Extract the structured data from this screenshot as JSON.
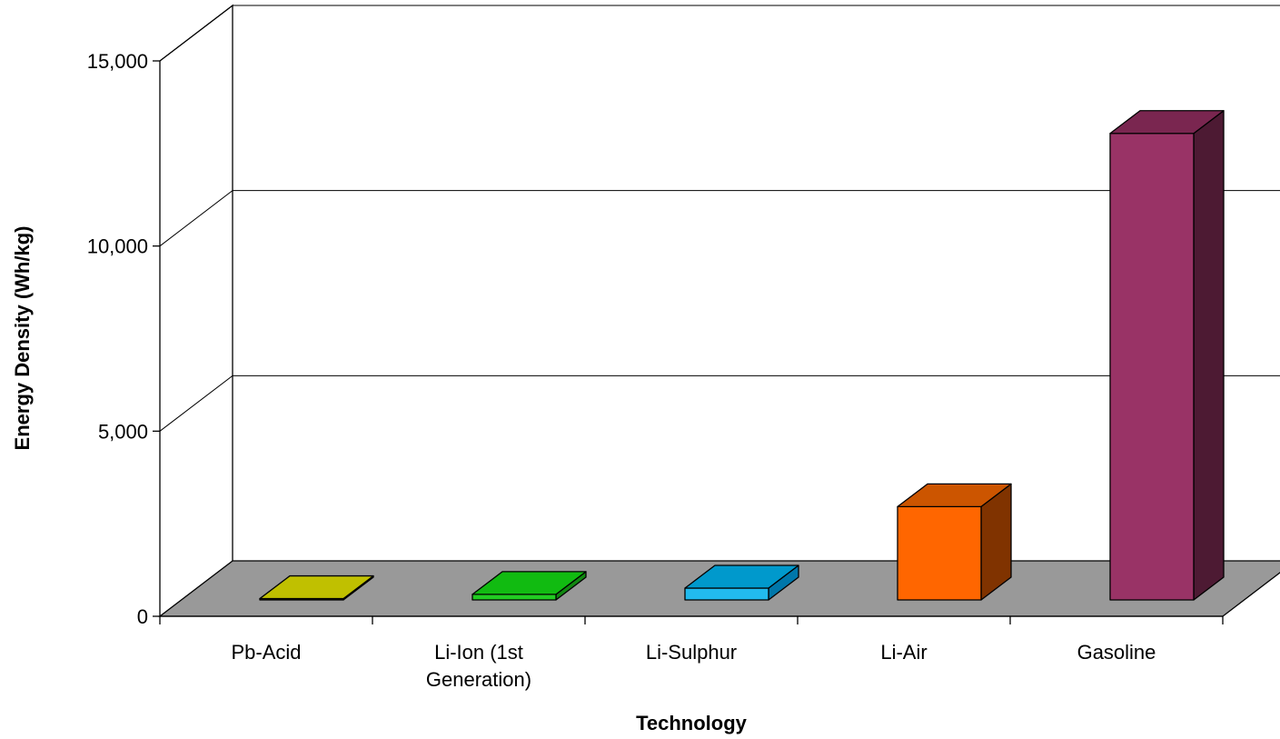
{
  "chart_data": {
    "type": "bar",
    "three_d": true,
    "title": "",
    "xlabel": "Technology",
    "ylabel": "Energy Density (Wh/kg)",
    "ylim": [
      0,
      15000
    ],
    "yticks": [
      0,
      5000,
      10000,
      15000
    ],
    "ytick_labels": [
      "0",
      "5,000",
      "10,000",
      "15,000"
    ],
    "grid": true,
    "legend": "none",
    "categories": [
      {
        "lines": [
          "Pb-Acid"
        ]
      },
      {
        "lines": [
          "Li-Ion (1st",
          "Generation)"
        ]
      },
      {
        "lines": [
          "Li-Sulphur"
        ]
      },
      {
        "lines": [
          "Li-Air"
        ]
      },
      {
        "lines": [
          "Gasoline"
        ]
      }
    ],
    "values": [
      35,
      150,
      320,
      2520,
      12600
    ],
    "colors": {
      "front": [
        "#c8c800",
        "#22cc22",
        "#22bbee",
        "#ff6600",
        "#993366"
      ],
      "top": [
        "#c0c000",
        "#11bb11",
        "#0099cc",
        "#cc5500",
        "#7a2650"
      ],
      "side": [
        "#7a7a00",
        "#118811",
        "#0077aa",
        "#803300",
        "#4d1a33"
      ],
      "floor": "#999999",
      "background": "#ffffff"
    }
  }
}
